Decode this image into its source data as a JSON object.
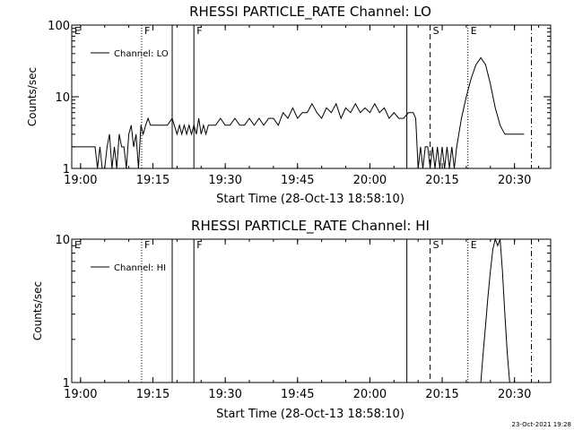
{
  "timestamp": "23-Oct-2021 19:28",
  "chart_data": [
    {
      "type": "line",
      "title": "RHESSI PARTICLE_RATE Channel: LO",
      "xlabel": "Start Time (28-Oct-13 18:58:10)",
      "ylabel": "Counts/sec",
      "yscale": "log",
      "xlim": [
        "18:58:10",
        "20:37:30"
      ],
      "ylim": [
        1,
        100
      ],
      "xticks": [
        "19:00",
        "19:15",
        "19:30",
        "19:45",
        "20:00",
        "20:15",
        "20:30"
      ],
      "yticks": [
        "1",
        "10",
        "100"
      ],
      "legend": {
        "entries": [
          "Channel: LO"
        ],
        "position": "top-left"
      },
      "series": [
        {
          "name": "Channel: LO",
          "x": [
            "18:58:10",
            "19:03:00",
            "19:03:30",
            "19:04:00",
            "19:04:30",
            "19:05:00",
            "19:05:30",
            "19:06:00",
            "19:06:30",
            "19:07:00",
            "19:07:30",
            "19:08:00",
            "19:08:30",
            "19:09:00",
            "19:09:30",
            "19:10:00",
            "19:10:30",
            "19:11:00",
            "19:11:30",
            "19:12:00",
            "19:12:30",
            "19:13:00",
            "19:13:30",
            "19:14:00",
            "19:14:30",
            "19:15:00",
            "19:15:30",
            "19:16:00",
            "19:16:30",
            "19:17:00",
            "19:18:00",
            "19:19:00",
            "19:20:00",
            "19:20:30",
            "19:21:00",
            "19:21:30",
            "19:22:00",
            "19:22:30",
            "19:23:00",
            "19:23:30",
            "19:24:00",
            "19:24:30",
            "19:25:00",
            "19:25:30",
            "19:26:00",
            "19:26:30",
            "19:27:00",
            "19:28:00",
            "19:29:00",
            "19:30:00",
            "19:31:00",
            "19:32:00",
            "19:33:00",
            "19:34:00",
            "19:35:00",
            "19:36:00",
            "19:37:00",
            "19:38:00",
            "19:39:00",
            "19:40:00",
            "19:41:00",
            "19:42:00",
            "19:43:00",
            "19:44:00",
            "19:45:00",
            "19:46:00",
            "19:47:00",
            "19:48:00",
            "19:49:00",
            "19:50:00",
            "19:51:00",
            "19:52:00",
            "19:53:00",
            "19:54:00",
            "19:55:00",
            "19:56:00",
            "19:57:00",
            "19:58:00",
            "19:59:00",
            "20:00:00",
            "20:01:00",
            "20:02:00",
            "20:03:00",
            "20:04:00",
            "20:05:00",
            "20:06:00",
            "20:07:00",
            "20:08:00",
            "20:09:00",
            "20:09:30",
            "20:10:00",
            "20:10:30",
            "20:11:00",
            "20:11:30",
            "20:12:00",
            "20:12:30",
            "20:13:00",
            "20:13:30",
            "20:14:00",
            "20:14:30",
            "20:15:00",
            "20:15:30",
            "20:16:00",
            "20:16:30",
            "20:17:00",
            "20:17:30",
            "20:18:00",
            "20:19:00",
            "20:20:00",
            "20:21:00",
            "20:22:00",
            "20:23:00",
            "20:24:00",
            "20:25:00",
            "20:26:00",
            "20:27:00",
            "20:28:00",
            "20:29:00",
            "20:30:00",
            "20:31:00",
            "20:32:00"
          ],
          "y": [
            2.0,
            2.0,
            1.0,
            2.0,
            1.0,
            1.0,
            2.0,
            3.0,
            1.0,
            2.0,
            1.0,
            3.0,
            2.0,
            2.0,
            1.0,
            3.0,
            4.0,
            2.0,
            3.0,
            1.0,
            4.0,
            3.0,
            4.0,
            5.0,
            4.0,
            4.0,
            4.0,
            4.0,
            4.0,
            4.0,
            4.0,
            5.0,
            3.0,
            4.0,
            3.0,
            4.0,
            3.0,
            4.0,
            3.0,
            4.0,
            3.0,
            5.0,
            3.0,
            4.0,
            3.0,
            4.0,
            4.0,
            4.0,
            5.0,
            4.0,
            4.0,
            5.0,
            4.0,
            4.0,
            5.0,
            4.0,
            5.0,
            4.0,
            5.0,
            5.0,
            4.0,
            6.0,
            5.0,
            7.0,
            5.0,
            6.0,
            6.0,
            8.0,
            6.0,
            5.0,
            7.0,
            6.0,
            8.0,
            5.0,
            7.0,
            6.0,
            8.0,
            6.0,
            7.0,
            6.0,
            8.0,
            6.0,
            7.0,
            5.0,
            6.0,
            5.0,
            5.0,
            6.0,
            6.0,
            5.0,
            1.0,
            2.0,
            1.0,
            2.0,
            2.0,
            1.0,
            2.0,
            1.0,
            2.0,
            1.0,
            2.0,
            1.0,
            2.0,
            1.0,
            2.0,
            1.0,
            2.0,
            5.0,
            10.0,
            18.0,
            28.0,
            35.0,
            28.0,
            15.0,
            7.0,
            4.0,
            3.0,
            3.0,
            3.0,
            3.0,
            3.0
          ]
        }
      ],
      "annotations": [
        {
          "label": "E",
          "time": "18:58:10",
          "line": "none"
        },
        {
          "label": "F",
          "time": "19:12:40",
          "line": "dotted"
        },
        {
          "label": "",
          "time": "19:19:00",
          "line": "solid"
        },
        {
          "label": "F",
          "time": "19:23:30",
          "line": "solid"
        },
        {
          "label": "",
          "time": "20:07:40",
          "line": "solid"
        },
        {
          "label": "S",
          "time": "20:12:30",
          "line": "dashed"
        },
        {
          "label": "E",
          "time": "20:20:20",
          "line": "dotted"
        },
        {
          "label": "",
          "time": "20:33:30",
          "line": "dash-dot"
        }
      ]
    },
    {
      "type": "line",
      "title": "RHESSI PARTICLE_RATE Channel: HI",
      "xlabel": "Start Time (28-Oct-13 18:58:10)",
      "ylabel": "Counts/sec",
      "yscale": "log",
      "xlim": [
        "18:58:10",
        "20:37:30"
      ],
      "ylim": [
        1,
        10
      ],
      "xticks": [
        "19:00",
        "19:15",
        "19:30",
        "19:45",
        "20:00",
        "20:15",
        "20:30"
      ],
      "yticks": [
        "1",
        "10"
      ],
      "legend": {
        "entries": [
          "Channel: HI"
        ],
        "position": "top-left"
      },
      "series": [
        {
          "name": "Channel: HI",
          "x": [
            "20:23:00",
            "20:23:30",
            "20:24:00",
            "20:24:30",
            "20:25:00",
            "20:25:30",
            "20:26:00",
            "20:26:30",
            "20:27:00",
            "20:27:30",
            "20:28:00",
            "20:28:30",
            "20:29:00"
          ],
          "y": [
            1.0,
            1.6,
            2.5,
            4.0,
            6.0,
            8.5,
            10.5,
            9.0,
            10.0,
            6.0,
            3.0,
            1.6,
            1.0
          ]
        }
      ],
      "annotations": [
        {
          "label": "E",
          "time": "18:58:10",
          "line": "none"
        },
        {
          "label": "F",
          "time": "19:12:40",
          "line": "dotted"
        },
        {
          "label": "",
          "time": "19:19:00",
          "line": "solid"
        },
        {
          "label": "F",
          "time": "19:23:30",
          "line": "solid"
        },
        {
          "label": "",
          "time": "20:07:40",
          "line": "solid"
        },
        {
          "label": "S",
          "time": "20:12:30",
          "line": "dashed"
        },
        {
          "label": "E",
          "time": "20:20:20",
          "line": "dotted"
        },
        {
          "label": "",
          "time": "20:33:30",
          "line": "dash-dot"
        }
      ]
    }
  ]
}
